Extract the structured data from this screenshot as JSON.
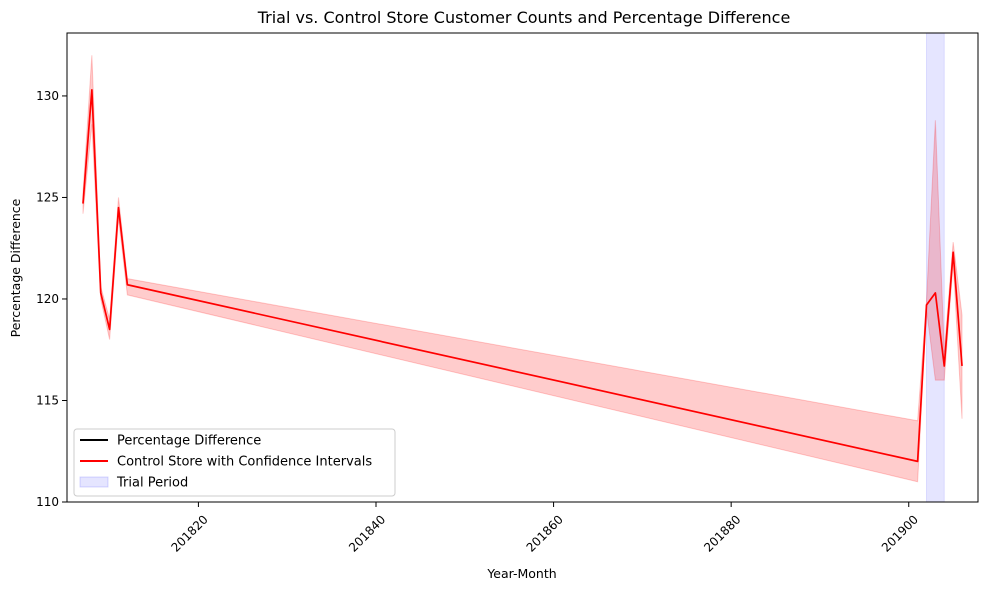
{
  "chart_data": {
    "type": "line",
    "title": "Trial vs. Control Store Customer Counts and Percentage Difference",
    "xlabel": "Year-Month",
    "ylabel": "Percentage Difference",
    "xlim": [
      201805.2,
      201907.8
    ],
    "ylim": [
      110,
      133.1
    ],
    "x_ticks": [
      201820,
      201840,
      201860,
      201880,
      201900
    ],
    "x_tick_labels": [
      "201820",
      "201840",
      "201860",
      "201880",
      "201900"
    ],
    "y_ticks": [
      110,
      115,
      120,
      125,
      130
    ],
    "y_tick_labels": [
      "110",
      "115",
      "120",
      "125",
      "130"
    ],
    "x_tick_rotation": 45,
    "grid": false,
    "legend_position": "lower-left",
    "series": [
      {
        "name": "Percentage Difference",
        "color": "#000000",
        "x": [],
        "y": []
      },
      {
        "name": "Control Store with Confidence Intervals",
        "color": "#ff0000",
        "x": [
          201807,
          201808,
          201809,
          201810,
          201811,
          201812,
          201901,
          201902,
          201903,
          201904,
          201905,
          201906
        ],
        "y": [
          124.7,
          130.3,
          120.3,
          118.5,
          124.5,
          120.7,
          112.0,
          119.7,
          120.3,
          116.7,
          122.3,
          116.7
        ],
        "ci_lower": [
          124.2,
          128.6,
          120.0,
          118.0,
          124.0,
          120.2,
          111.0,
          119.5,
          116.0,
          116.0,
          121.8,
          114.1
        ],
        "ci_upper": [
          125.2,
          132.0,
          120.6,
          119.0,
          125.0,
          121.0,
          114.0,
          119.9,
          128.8,
          117.4,
          122.8,
          119.2
        ],
        "ci_color": "#ff0000"
      }
    ],
    "shaded_regions": [
      {
        "name": "Trial Period",
        "x_start": 201902,
        "x_end": 201904,
        "color": "#0000ff"
      }
    ],
    "legend": [
      {
        "label": "Percentage Difference",
        "kind": "line",
        "color": "#000000"
      },
      {
        "label": "Control Store with Confidence Intervals",
        "kind": "line",
        "color": "#ff0000"
      },
      {
        "label": "Trial Period",
        "kind": "patch",
        "color": "#0000ff"
      }
    ]
  }
}
